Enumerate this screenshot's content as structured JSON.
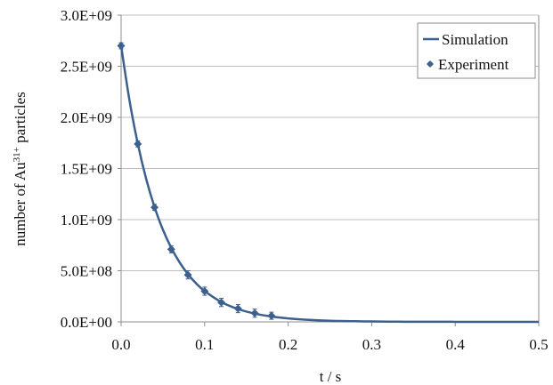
{
  "chart_data": {
    "type": "line",
    "title": "",
    "xlabel": "t / s",
    "ylabel": "number of Au",
    "ylabel_superscript": "31+",
    "ylabel_suffix": " particles",
    "xlim": [
      0,
      0.5
    ],
    "ylim": [
      0,
      3000000000
    ],
    "x_ticks": [
      0,
      0.1,
      0.2,
      0.3,
      0.4,
      0.5
    ],
    "x_tick_labels": [
      "0.0",
      "0.1",
      "0.2",
      "0.3",
      "0.4",
      "0.5"
    ],
    "y_ticks": [
      0,
      500000000,
      1000000000,
      1500000000,
      2000000000,
      2500000000,
      3000000000
    ],
    "y_tick_labels": [
      "0.0E+00",
      "5.0E+08",
      "1.0E+09",
      "1.5E+09",
      "2.0E+09",
      "2.5E+09",
      "3.0E+09"
    ],
    "grid": true,
    "legend_position": "top-right",
    "colors": {
      "series": "#3c5f8e",
      "grid": "#bfbfbf",
      "axis": "#8c8c8c"
    },
    "series": [
      {
        "name": "Simulation",
        "kind": "line",
        "x": [
          0,
          0.01,
          0.02,
          0.03,
          0.04,
          0.05,
          0.06,
          0.07,
          0.08,
          0.09,
          0.1,
          0.12,
          0.14,
          0.16,
          0.18,
          0.2,
          0.22,
          0.25,
          0.28,
          0.3,
          0.33,
          0.36,
          0.4,
          0.45,
          0.5
        ],
        "y": [
          2700000000,
          2168000000,
          1741000000,
          1398000000,
          1123000000,
          902000000,
          724000000,
          582000000,
          467000000,
          375000000,
          301000000,
          194000000,
          125000000,
          81000000,
          52000000,
          34000000,
          22000000,
          11000000,
          6000000,
          4000000,
          2000000,
          1000000,
          500000,
          200000,
          100000
        ]
      },
      {
        "name": "Experiment",
        "kind": "scatter",
        "x": [
          0,
          0.02,
          0.04,
          0.06,
          0.08,
          0.1,
          0.12,
          0.14,
          0.16,
          0.18
        ],
        "y": [
          2700000000,
          1740000000,
          1120000000,
          710000000,
          460000000,
          300000000,
          190000000,
          130000000,
          85000000,
          60000000
        ],
        "error": [
          30000000,
          30000000,
          30000000,
          35000000,
          40000000,
          40000000,
          40000000,
          40000000,
          40000000,
          35000000
        ]
      }
    ]
  }
}
